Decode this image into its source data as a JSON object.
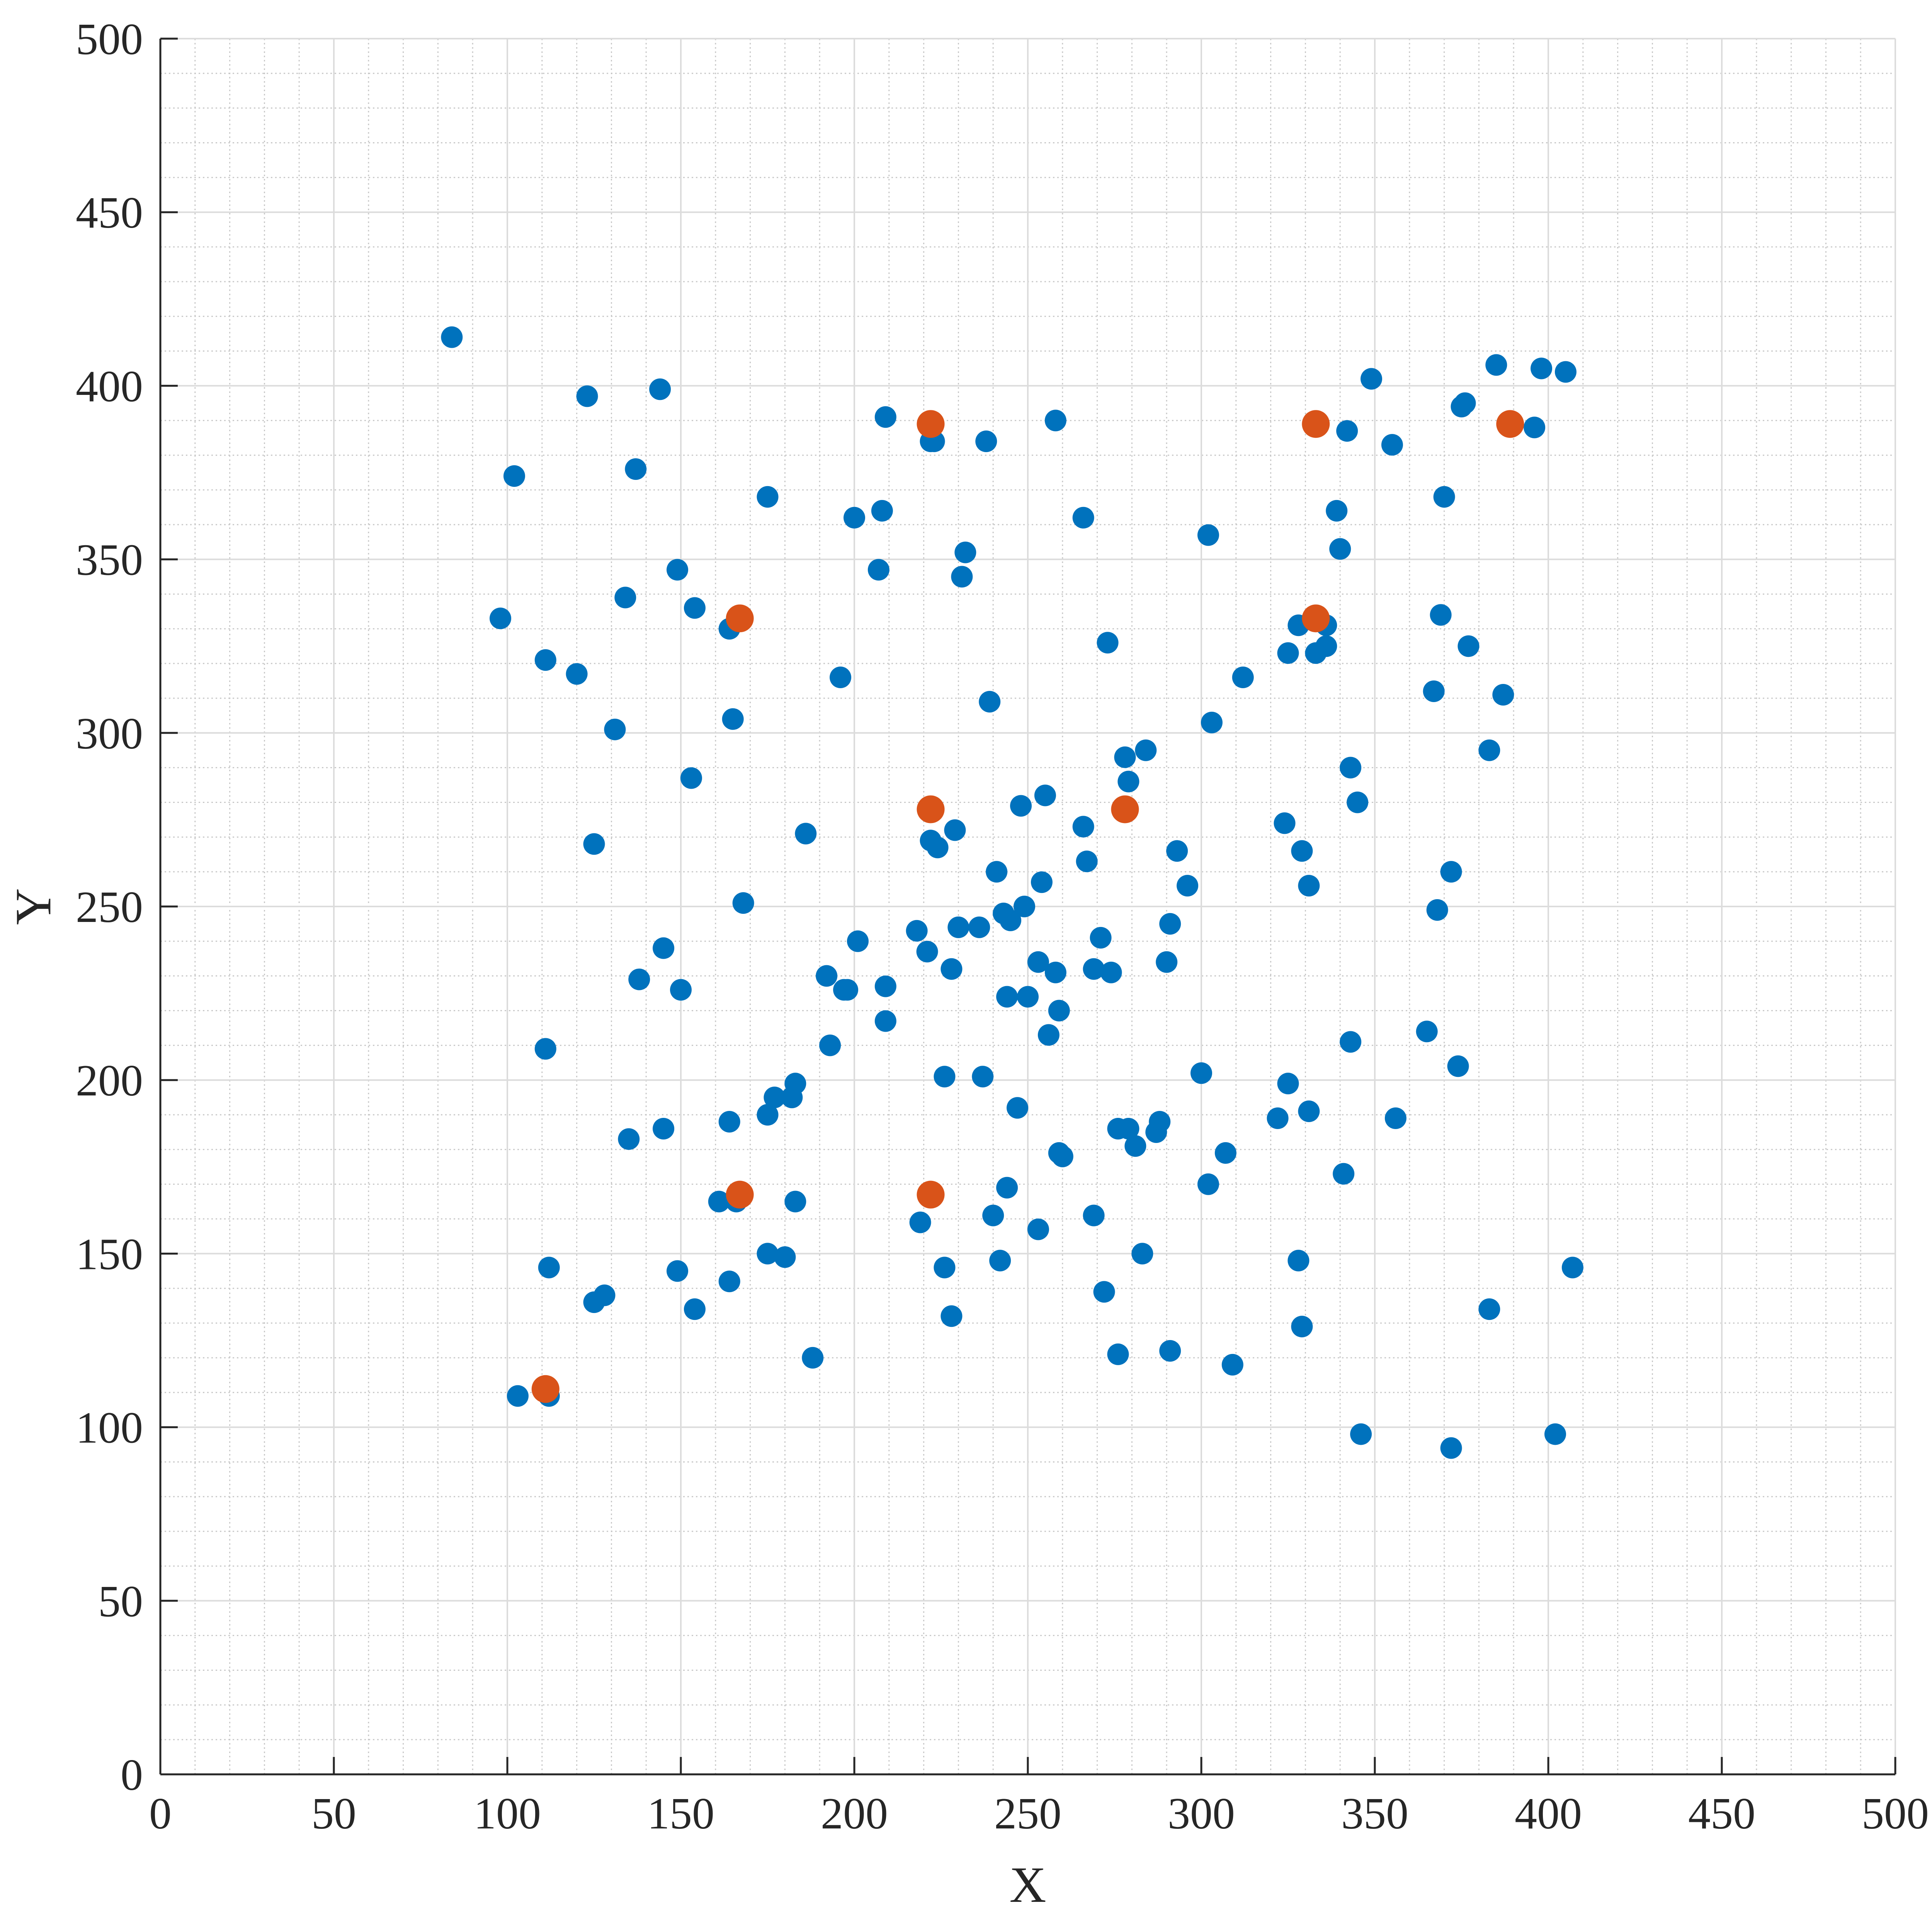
{
  "chart_data": {
    "type": "scatter",
    "title": "",
    "xlabel": "X",
    "ylabel": "Y",
    "xlim": [
      0,
      500
    ],
    "ylim": [
      0,
      500
    ],
    "xticks": [
      0,
      50,
      100,
      150,
      200,
      250,
      300,
      350,
      400,
      450,
      500
    ],
    "yticks": [
      0,
      50,
      100,
      150,
      200,
      250,
      300,
      350,
      400,
      450,
      500
    ],
    "xtick_labels": [
      "0",
      "50",
      "100",
      "150",
      "200",
      "250",
      "300",
      "350",
      "400",
      "450",
      "500"
    ],
    "ytick_labels": [
      "0",
      "50",
      "100",
      "150",
      "200",
      "250",
      "300",
      "350",
      "400",
      "450",
      "500"
    ],
    "grid": true,
    "minor_grid": true,
    "legend": "none",
    "series": [
      {
        "color": "#0072BD",
        "x": [
          84,
          123,
          144,
          102,
          137,
          98,
          134,
          149,
          154,
          111,
          120,
          131,
          125,
          153,
          164,
          165,
          175,
          200,
          208,
          207,
          209,
          222,
          223,
          238,
          232,
          231,
          258,
          266,
          273,
          239,
          302,
          303,
          312,
          342,
          339,
          340,
          336,
          333,
          328,
          336,
          349,
          355,
          376,
          375,
          385,
          398,
          405,
          396,
          370,
          369,
          377,
          367,
          387,
          383,
          186,
          196,
          198,
          201,
          218,
          221,
          222,
          224,
          229,
          236,
          241,
          243,
          249,
          254,
          255,
          253,
          248,
          266,
          267,
          278,
          279,
          284,
          293,
          296,
          291,
          290,
          276,
          271,
          269,
          274,
          258,
          256,
          259,
          259,
          250,
          244,
          245,
          230,
          228,
          226,
          237,
          247,
          244,
          240,
          242,
          253,
          260,
          279,
          281,
          287,
          288,
          300,
          307,
          302,
          269,
          272,
          283,
          276,
          291,
          309,
          324,
          322,
          325,
          331,
          329,
          331,
          325,
          343,
          345,
          365,
          368,
          372,
          374,
          356,
          341,
          343,
          346,
          328,
          329,
          372,
          383,
          402,
          407,
          112,
          168,
          145,
          138,
          150,
          192,
          197,
          209,
          209,
          193,
          183,
          182,
          177,
          175,
          164,
          145,
          135,
          111,
          161,
          166,
          183,
          175,
          180,
          164,
          149,
          154,
          128,
          125,
          103,
          112,
          188,
          226,
          228,
          219
        ],
        "y": [
          414,
          397,
          399,
          374,
          376,
          333,
          339,
          347,
          336,
          321,
          317,
          301,
          268,
          287,
          330,
          304,
          368,
          362,
          364,
          347,
          391,
          384,
          384,
          384,
          352,
          345,
          390,
          362,
          326,
          309,
          357,
          303,
          316,
          387,
          364,
          353,
          325,
          323,
          331,
          331,
          402,
          383,
          395,
          394,
          406,
          405,
          404,
          388,
          368,
          334,
          325,
          312,
          311,
          295,
          271,
          316,
          226,
          240,
          243,
          237,
          269,
          267,
          272,
          244,
          260,
          248,
          250,
          257,
          282,
          234,
          279,
          273,
          263,
          293,
          286,
          295,
          266,
          256,
          245,
          234,
          186,
          241,
          232,
          231,
          231,
          213,
          220,
          179,
          224,
          224,
          246,
          244,
          232,
          201,
          201,
          192,
          169,
          161,
          148,
          157,
          178,
          186,
          181,
          185,
          188,
          202,
          179,
          170,
          161,
          139,
          150,
          121,
          122,
          118,
          274,
          189,
          199,
          191,
          266,
          256,
          323,
          290,
          280,
          214,
          249,
          260,
          204,
          189,
          173,
          211,
          98,
          148,
          129,
          94,
          134,
          98,
          146,
          146,
          251,
          238,
          229,
          226,
          230,
          226,
          217,
          227,
          210,
          199,
          195,
          195,
          190,
          188,
          186,
          183,
          209,
          165,
          165,
          165,
          150,
          149,
          142,
          145,
          134,
          138,
          136,
          109,
          109,
          120,
          146,
          132,
          159
        ],
        "radius_px": 28
      },
      {
        "color": "#D95319",
        "x": [
          111,
          167,
          222,
          167,
          222,
          278,
          222,
          333,
          333,
          389
        ],
        "y": [
          111,
          167,
          167,
          333,
          278,
          278,
          389,
          389,
          333,
          389
        ],
        "radius_px": 36
      }
    ]
  }
}
